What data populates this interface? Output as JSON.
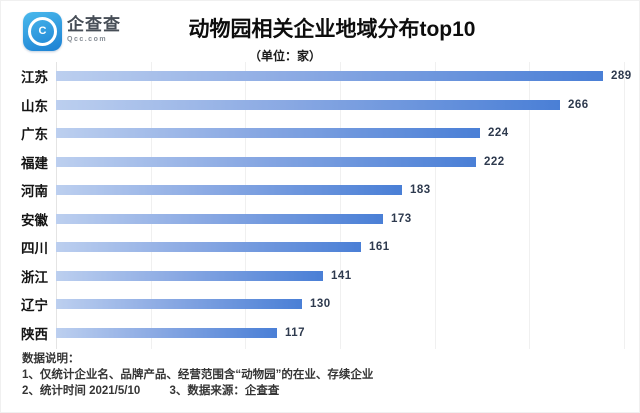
{
  "brand": {
    "name": "企查查",
    "domain": "Qcc.com",
    "icon_glyph": "C",
    "icon_color_top": "#4ab9ec",
    "icon_color_bottom": "#1b80d3"
  },
  "header": {
    "title": "动物园相关企业地域分布top10",
    "subtitle": "（单位：家）"
  },
  "chart_data": {
    "type": "bar",
    "orientation": "horizontal",
    "title": "动物园相关企业地域分布top10",
    "unit": "家",
    "categories": [
      "江苏",
      "山东",
      "广东",
      "福建",
      "河南",
      "安徽",
      "四川",
      "浙江",
      "辽宁",
      "陕西"
    ],
    "values": [
      289,
      266,
      224,
      222,
      183,
      173,
      161,
      141,
      130,
      117
    ],
    "xlim": [
      0,
      300
    ],
    "grid_interval": 50,
    "grid_on": true,
    "bar_gradient": [
      "#bccfef",
      "#4a7fd6"
    ],
    "value_label_color": "#2e3a4e"
  },
  "footnotes": {
    "heading": "数据说明：",
    "note1": "1、仅统计企业名、品牌产品、经营范围含“动物园”的在业、存续企业",
    "note2": "2、统计时间 2021/5/10",
    "note3": "3、数据来源：企查查"
  }
}
